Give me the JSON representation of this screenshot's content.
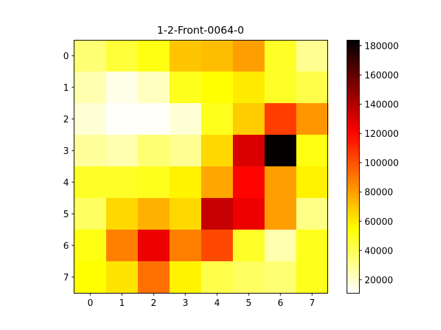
{
  "chart_data": {
    "type": "heatmap",
    "title": "1-2-Front-0064-0",
    "xlabel": "",
    "ylabel": "",
    "x_categories": [
      "0",
      "1",
      "2",
      "3",
      "4",
      "5",
      "6",
      "7"
    ],
    "y_categories": [
      "0",
      "1",
      "2",
      "3",
      "4",
      "5",
      "6",
      "7"
    ],
    "values": [
      [
        35000,
        45000,
        52000,
        70000,
        72000,
        80000,
        48000,
        30000
      ],
      [
        25000,
        15000,
        22000,
        50000,
        55000,
        60000,
        48000,
        42000
      ],
      [
        18000,
        12000,
        12000,
        18000,
        50000,
        68000,
        105000,
        82000
      ],
      [
        28000,
        25000,
        35000,
        30000,
        65000,
        130000,
        183000,
        52000
      ],
      [
        48000,
        48000,
        50000,
        58000,
        78000,
        120000,
        80000,
        58000
      ],
      [
        38000,
        65000,
        75000,
        65000,
        135000,
        125000,
        80000,
        32000
      ],
      [
        52000,
        88000,
        125000,
        88000,
        102000,
        48000,
        25000,
        50000
      ],
      [
        55000,
        62000,
        92000,
        58000,
        42000,
        38000,
        35000,
        50000
      ]
    ],
    "colorbar": {
      "min": 11000,
      "max": 184000,
      "ticks": [
        20000,
        40000,
        60000,
        80000,
        100000,
        120000,
        140000,
        160000,
        180000
      ],
      "tick_labels": [
        "20000",
        "40000",
        "60000",
        "80000",
        "100000",
        "120000",
        "140000",
        "160000",
        "180000"
      ],
      "colormap": "hot_r"
    },
    "grid": false,
    "legend": "colorbar-right"
  }
}
